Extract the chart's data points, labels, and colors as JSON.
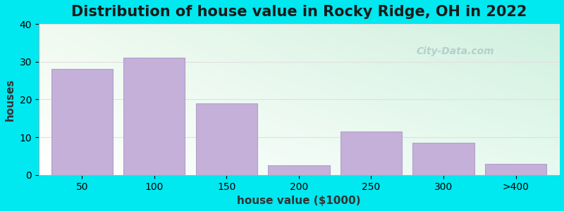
{
  "title": "Distribution of house value in Rocky Ridge, OH in 2022",
  "xlabel": "house value ($1000)",
  "ylabel": "houses",
  "categories": [
    "50",
    "100",
    "150",
    "200",
    "250",
    "300",
    ">400"
  ],
  "values": [
    28,
    31,
    19,
    2.5,
    11.5,
    8.5,
    3
  ],
  "bar_color": "#c4b0d8",
  "bar_edge_color": "#b0a0c8",
  "ylim": [
    0,
    40
  ],
  "yticks": [
    0,
    10,
    20,
    30,
    40
  ],
  "outer_bg_color": "#00e8f0",
  "plot_bg_color_topleft": "#f0faf0",
  "plot_bg_color_topright": "#d8f5e8",
  "plot_bg_color_bottomleft": "#ffffff",
  "plot_bg_color_bottomright": "#e8faf0",
  "title_fontsize": 15,
  "axis_label_fontsize": 11,
  "tick_fontsize": 10,
  "watermark_text": "City-Data.com",
  "watermark_color": "#b0c8c8",
  "grid_color": "#e0e0e0"
}
